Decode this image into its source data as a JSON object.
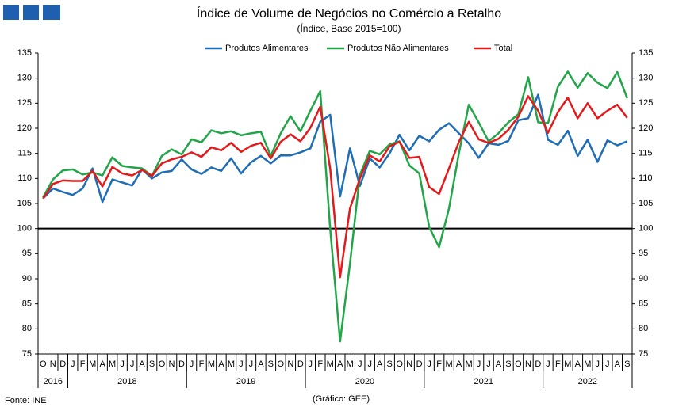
{
  "chart_data": {
    "type": "line",
    "title": "Índice de Volume de Negócios no Comércio a Retalho",
    "subtitle": "(Índice, Base 2015=100)",
    "source": "Fonte: INE",
    "credit": "(Gráfico: GEE)",
    "categories": [
      "O",
      "N",
      "D",
      "J",
      "F",
      "M",
      "A",
      "M",
      "J",
      "J",
      "A",
      "S",
      "O",
      "N",
      "D",
      "J",
      "F",
      "M",
      "A",
      "M",
      "J",
      "J",
      "A",
      "S",
      "O",
      "N",
      "D",
      "J",
      "F",
      "M",
      "A",
      "M",
      "J",
      "J",
      "A",
      "S",
      "O",
      "N",
      "D",
      "J",
      "F",
      "M",
      "A",
      "M",
      "J",
      "J",
      "A",
      "S",
      "O",
      "N",
      "D",
      "J",
      "F",
      "M",
      "A",
      "M",
      "J",
      "J",
      "A",
      "S"
    ],
    "year_labels": [
      "2016",
      "2018",
      "2019",
      "2020",
      "2021",
      "2022"
    ],
    "series": [
      {
        "name": "Produtos Alimentares",
        "color": "#1f6db5",
        "values": [
          106,
          108,
          107.3,
          106.7,
          108,
          112,
          105.3,
          109.8,
          109.2,
          108.6,
          111.8,
          110,
          111.2,
          111.5,
          113.8,
          111.8,
          110.9,
          112.2,
          111.5,
          114,
          111,
          113.2,
          114.5,
          113,
          114.6,
          114.6,
          115.2,
          116,
          121.3,
          122.7,
          106.4,
          116,
          108.5,
          114,
          112.2,
          115,
          118.7,
          115.6,
          118.5,
          117.4,
          119.7,
          121,
          119,
          117,
          114.1,
          117,
          116.7,
          117.5,
          121.6,
          122,
          126.7,
          117.7,
          116.7,
          119.5,
          114.5,
          117.7,
          113.3,
          117.6,
          116.6,
          117.4
        ]
      },
      {
        "name": "Produtos Não Alimentares",
        "color": "#22a548",
        "values": [
          106.2,
          109.8,
          111.6,
          111.8,
          110.8,
          111.2,
          110.6,
          114.2,
          112.5,
          112.2,
          112,
          110.5,
          114.5,
          115.8,
          114.8,
          117.8,
          117.2,
          119.6,
          119,
          119.4,
          118.6,
          119,
          119.3,
          114.5,
          119,
          122.4,
          119.4,
          123.5,
          127.4,
          100,
          77.5,
          93,
          110.7,
          115.5,
          114.8,
          116.8,
          117.4,
          112.6,
          111,
          100.3,
          96.3,
          104,
          115,
          124.7,
          121.2,
          117.4,
          119,
          121.2,
          122.8,
          130.2,
          121.2,
          121,
          128.3,
          131.3,
          128.1,
          131,
          129.1,
          128,
          131.2,
          126
        ]
      },
      {
        "name": "Total",
        "color": "#e31a1c",
        "values": [
          106,
          108.9,
          109.6,
          109.5,
          109.5,
          111.5,
          108.4,
          112.3,
          111,
          110.6,
          111.7,
          110.5,
          113,
          113.8,
          114.3,
          115.2,
          114.3,
          116.2,
          115.6,
          117.1,
          115.3,
          116.5,
          117.1,
          114,
          117.3,
          118.8,
          117.4,
          120.1,
          124.3,
          112,
          90.3,
          104,
          110,
          114.6,
          113.4,
          116.4,
          117.3,
          114.1,
          114.3,
          108.3,
          106.9,
          112,
          117.3,
          121.3,
          117.8,
          117.1,
          117.9,
          119.7,
          122.3,
          126.4,
          123.5,
          119.1,
          123.2,
          126.1,
          122,
          125,
          122,
          123.5,
          124.7,
          122.1
        ]
      }
    ],
    "reference_line": 100,
    "ylim": [
      75,
      135
    ],
    "yticks": [
      75,
      80,
      85,
      90,
      95,
      100,
      105,
      110,
      115,
      120,
      125,
      130,
      135
    ],
    "y2lim": [
      75,
      135
    ],
    "y2ticks": [
      75,
      80,
      85,
      90,
      95,
      100,
      105,
      110,
      115,
      120,
      125,
      130,
      135
    ],
    "legend": "top",
    "grid": false
  }
}
